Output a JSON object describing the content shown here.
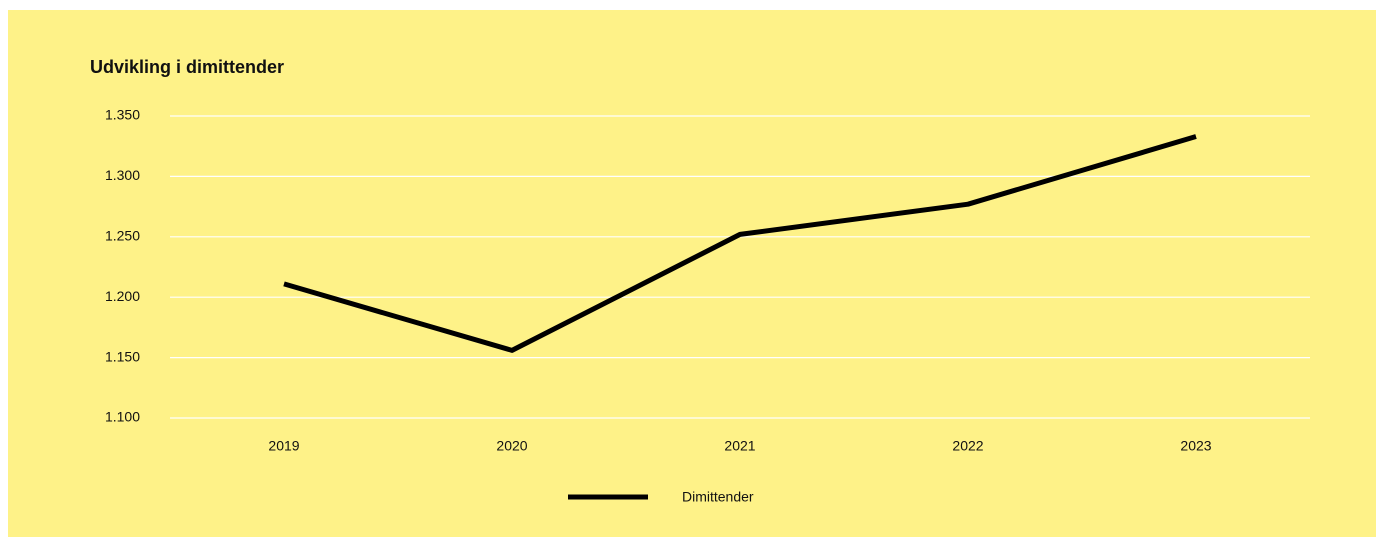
{
  "chart_data": {
    "type": "line",
    "title": "Udvikling i dimittender",
    "categories": [
      "2019",
      "2020",
      "2021",
      "2022",
      "2023"
    ],
    "series": [
      {
        "name": "Dimittender",
        "color": "#000000",
        "values": [
          1211,
          1156,
          1252,
          1277,
          1333
        ]
      }
    ],
    "ylim": [
      1100,
      1350
    ],
    "yticks": [
      {
        "value": 1100,
        "label": "1.100"
      },
      {
        "value": 1150,
        "label": "1.150"
      },
      {
        "value": 1200,
        "label": "1.200"
      },
      {
        "value": 1250,
        "label": "1.250"
      },
      {
        "value": 1300,
        "label": "1.300"
      },
      {
        "value": 1350,
        "label": "1.350"
      }
    ],
    "grid": true,
    "background": "#fef288"
  }
}
